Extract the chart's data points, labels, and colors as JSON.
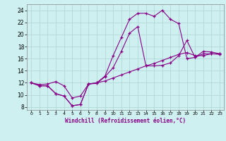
{
  "xlabel": "Windchill (Refroidissement éolien,°C)",
  "bg_color": "#cff0f0",
  "grid_color": "#b0d8d8",
  "line_color": "#880088",
  "xlim": [
    -0.5,
    23.5
  ],
  "ylim": [
    7.5,
    25.0
  ],
  "xticks": [
    0,
    1,
    2,
    3,
    4,
    5,
    6,
    7,
    8,
    9,
    10,
    11,
    12,
    13,
    14,
    15,
    16,
    17,
    18,
    19,
    20,
    21,
    22,
    23
  ],
  "yticks": [
    8,
    10,
    12,
    14,
    16,
    18,
    20,
    22,
    24
  ],
  "line1_x": [
    0,
    1,
    2,
    3,
    4,
    5,
    6,
    7,
    8,
    9,
    10,
    11,
    12,
    13,
    14,
    15,
    16,
    17,
    18,
    19,
    20,
    21,
    22,
    23
  ],
  "line1_y": [
    12.0,
    11.5,
    11.5,
    10.2,
    9.8,
    8.2,
    8.4,
    11.8,
    11.9,
    13.0,
    14.5,
    17.2,
    20.2,
    21.3,
    14.8,
    14.8,
    14.9,
    15.3,
    16.5,
    19.0,
    16.2,
    17.2,
    17.1,
    16.8
  ],
  "line2_x": [
    0,
    1,
    2,
    3,
    4,
    5,
    6,
    7,
    8,
    9,
    10,
    11,
    12,
    13,
    14,
    15,
    16,
    17,
    18,
    19,
    20,
    21,
    22,
    23
  ],
  "line2_y": [
    12.0,
    11.5,
    11.5,
    10.2,
    9.8,
    8.2,
    8.4,
    11.8,
    12.0,
    13.1,
    16.5,
    19.5,
    22.5,
    23.5,
    23.5,
    23.0,
    24.0,
    22.5,
    21.8,
    16.0,
    16.2,
    16.8,
    16.8,
    16.8
  ],
  "line3_x": [
    0,
    1,
    2,
    3,
    4,
    5,
    6,
    7,
    8,
    9,
    10,
    11,
    12,
    13,
    14,
    15,
    16,
    17,
    18,
    19,
    20,
    21,
    22,
    23
  ],
  "line3_y": [
    12.0,
    11.7,
    11.8,
    12.2,
    11.5,
    9.5,
    9.8,
    11.8,
    12.0,
    12.3,
    12.8,
    13.3,
    13.8,
    14.3,
    14.8,
    15.2,
    15.7,
    16.2,
    16.7,
    17.0,
    16.5,
    16.5,
    16.8,
    16.7
  ]
}
